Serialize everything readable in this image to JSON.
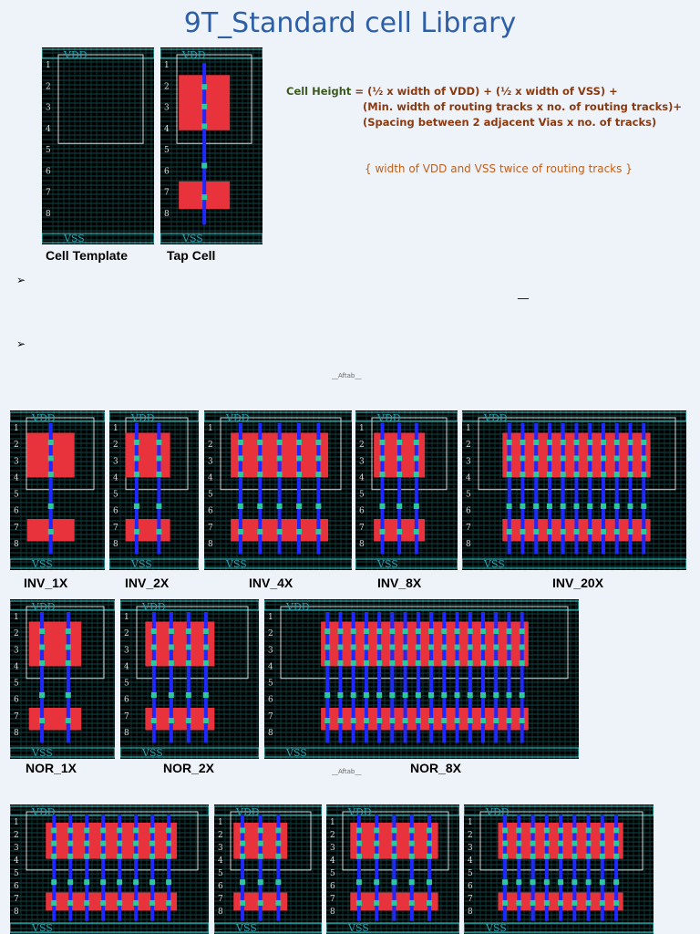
{
  "title": "9T_Standard cell Library",
  "template_captions": {
    "cell_template": "Cell Template",
    "tap_cell": "Tap Cell"
  },
  "formula": {
    "lhs": "Cell Height",
    "line1": " = (½ x width of VDD) + (½ x width of VSS) +",
    "line2": "(Min. width of routing tracks x no. of routing tracks)+",
    "line3": "(Spacing between 2 adjacent Vias x no. of tracks)",
    "note": "{ width of VDD and VSS twice of routing tracks }"
  },
  "bullets": [
    "➢",
    "➢"
  ],
  "dash": "__",
  "signature": "__Aftab__",
  "track_numbers": [
    "1",
    "2",
    "3",
    "4",
    "5",
    "6",
    "7",
    "8"
  ],
  "rail_labels": {
    "vdd": "VDD",
    "vss": "VSS"
  },
  "inv_captions": [
    "INV_1X",
    "INV_2X",
    "INV_4X",
    "INV_8X",
    "INV_20X"
  ],
  "nor_captions": [
    "NOR_1X",
    "NOR_2X",
    "NOR_8X"
  ],
  "colors": {
    "title": "#2e5fa6",
    "lhs": "#3c5a1e",
    "formula": "#8a3a10",
    "note": "#c0601c",
    "poly": "#e8323c",
    "metal_blue": "#1e28ff",
    "via": "#2ec89a",
    "nwell": "#7a2a8a",
    "boundary": "#d8d8d8",
    "track": "#35d0d0"
  }
}
